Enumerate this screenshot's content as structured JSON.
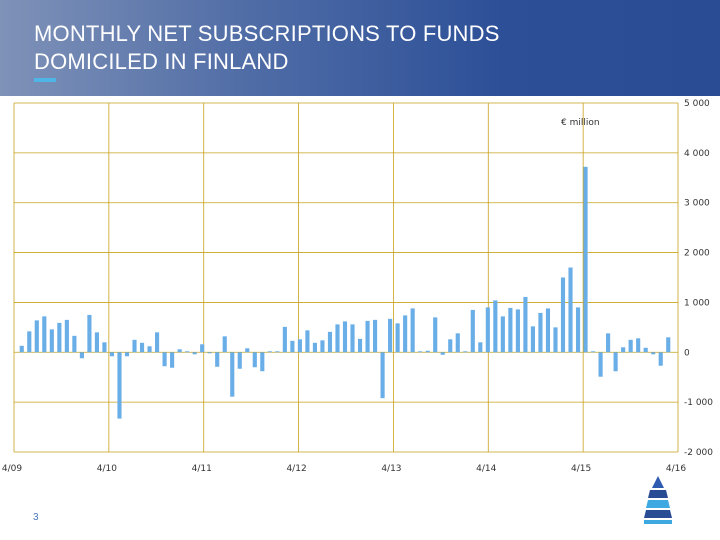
{
  "slide": {
    "title_line1": "MONTHLY NET SUBSCRIPTIONS TO FUNDS",
    "title_line2": "DOMICILED IN FINLAND",
    "page_number": "3",
    "logo": "bank-logo-icon"
  },
  "colors": {
    "header_start": "#7f92b8",
    "header_end": "#2a4c94",
    "accent": "#4fb4e6",
    "bar": "#6aaee8",
    "grid": "#c8a21e"
  },
  "chart_data": {
    "type": "bar",
    "title": "",
    "xlabel": "",
    "ylabel": "€ million",
    "ylim": [
      -2000,
      5000
    ],
    "yticks": [
      5000,
      4000,
      3000,
      2000,
      1000,
      0,
      -1000,
      -2000
    ],
    "ytick_labels": [
      "5 000",
      "4 000",
      "3 000",
      "2 000",
      "1 000",
      "0",
      "-1 000",
      "-2 000"
    ],
    "xtick_labels": [
      "4/09",
      "4/10",
      "4/11",
      "4/12",
      "4/13",
      "4/14",
      "4/15",
      "4/16"
    ],
    "grid": true,
    "legend": "none",
    "series": [
      {
        "values": [
          130,
          420,
          640,
          720,
          460,
          590,
          650,
          330,
          -120,
          750,
          400,
          200,
          -80,
          -1330,
          -80,
          250,
          190,
          120,
          400,
          -280,
          -310,
          60,
          20,
          -40,
          160,
          -20,
          -290,
          320,
          -890,
          -330,
          80,
          -300,
          -380,
          20,
          20,
          510,
          230,
          260,
          440,
          190,
          240,
          410,
          560,
          620,
          560,
          270,
          630,
          650,
          -920,
          670,
          580,
          740,
          880,
          20,
          30,
          700,
          -50,
          260,
          380,
          20,
          850,
          200,
          900,
          1040,
          720,
          890,
          860,
          1110,
          520,
          790,
          880,
          500,
          1500,
          1700,
          900,
          3720,
          20,
          -490,
          380,
          -380,
          100,
          250,
          280,
          90,
          -40,
          -270,
          300
        ]
      }
    ]
  }
}
